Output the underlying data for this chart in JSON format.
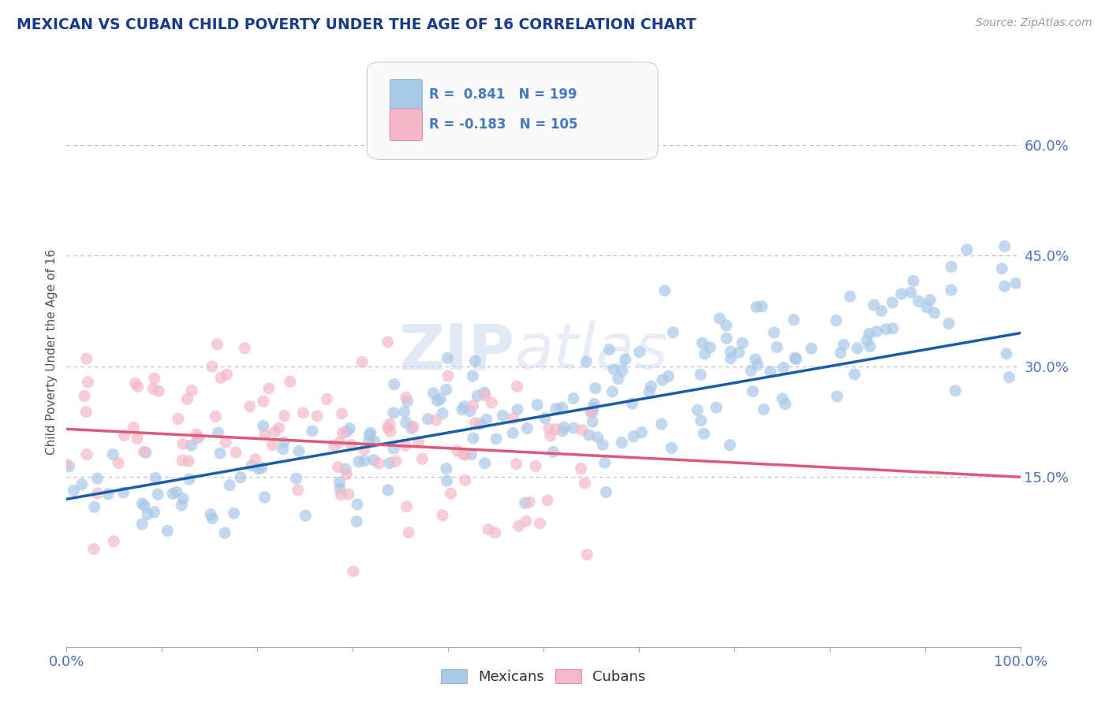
{
  "title": "MEXICAN VS CUBAN CHILD POVERTY UNDER THE AGE OF 16 CORRELATION CHART",
  "source": "Source: ZipAtlas.com",
  "ylabel": "Child Poverty Under the Age of 16",
  "xlim": [
    0,
    1.0
  ],
  "ylim": [
    -0.08,
    0.72
  ],
  "yticks": [
    0.15,
    0.3,
    0.45,
    0.6
  ],
  "ytick_labels": [
    "15.0%",
    "30.0%",
    "45.0%",
    "60.0%"
  ],
  "xticks": [
    0.0,
    0.1,
    0.2,
    0.3,
    0.4,
    0.5,
    0.6,
    0.7,
    0.8,
    0.9,
    1.0
  ],
  "xtick_labels_show": [
    "0.0%",
    "",
    "",
    "",
    "",
    "",
    "",
    "",
    "",
    "",
    "100.0%"
  ],
  "hlines": [
    0.15,
    0.3,
    0.45,
    0.6
  ],
  "mexican_color": "#a8c8e8",
  "cuban_color": "#f4b8c8",
  "mexican_line_color": "#1a5ca8",
  "cuban_line_color": "#e05878",
  "legend_text_color": "#4878c0",
  "legend_mexicans": "Mexicans",
  "legend_cubans": "Cubans",
  "R_mexican": 0.841,
  "N_mexican": 199,
  "R_cuban": -0.183,
  "N_cuban": 105,
  "background_color": "#ffffff",
  "title_color": "#1a3a8a",
  "axis_tick_color": "#5070c0",
  "watermark_zip": "ZIP",
  "watermark_atlas": "atlas",
  "mexican_intercept": 0.12,
  "mexican_slope": 0.225,
  "cuban_intercept": 0.215,
  "cuban_slope": -0.065,
  "seed": 123
}
